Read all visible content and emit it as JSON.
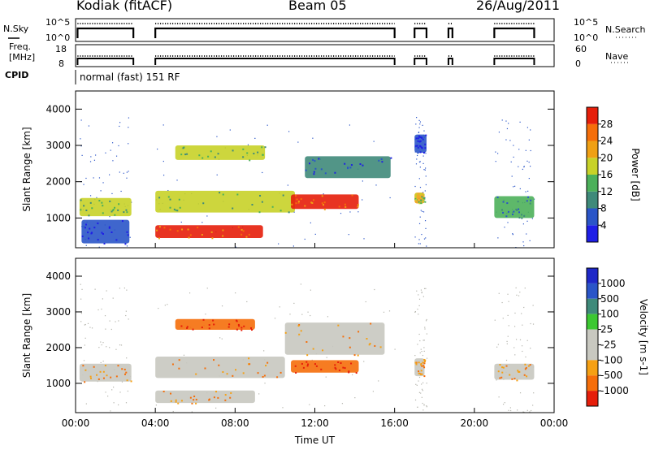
{
  "header": {
    "radar": "Kodiak (fitACF)",
    "beam": "Beam 05",
    "date": "26/Aug/2011"
  },
  "status": {
    "nsky_label": "N.Sky",
    "nsearch_label": "N.Search",
    "noise_ticks_left": [
      "10^5",
      "10^0"
    ],
    "noise_ticks_right": [
      "10^5",
      "10^0"
    ],
    "freq_label_1": "Freq.",
    "freq_label_2": "[MHz]",
    "freq_ticks": [
      "18",
      "8"
    ],
    "nave_label": "Nave",
    "nave_ticks": [
      "60",
      "0"
    ],
    "cpid_label": "CPID",
    "cpid_text": "normal (fast) 151 RF"
  },
  "colors": {
    "power_scale": [
      "#1e1ee6",
      "#2a55c8",
      "#3f8a7a",
      "#4cb05a",
      "#c8d228",
      "#f0a014",
      "#f56e0a",
      "#e61e0a"
    ],
    "velocity_scale": [
      "#e61e0a",
      "#f56e0a",
      "#f5a014",
      "#c8c8c0",
      "#c8c8c0",
      "#3cc832",
      "#3f8a7a",
      "#2a55c8",
      "#1e28c8"
    ],
    "ground_scatter": "#b4b4ac"
  },
  "chart_data": [
    {
      "type": "heatmap",
      "panel": "power",
      "ylabel": "Slant Range [km]",
      "ylim": [
        180,
        4500
      ],
      "y_ticks": [
        1000,
        2000,
        3000,
        4000
      ],
      "xlim": [
        0,
        24
      ],
      "x_tick_labels": [
        "00:00",
        "04:00",
        "08:00",
        "12:00",
        "16:00",
        "20:00",
        "00:00"
      ],
      "colorbar_label": "Power [dB]",
      "colorbar_ticks": [
        4,
        8,
        12,
        16,
        20,
        24,
        28
      ],
      "regions": [
        {
          "t0": 0.2,
          "t1": 2.8,
          "r0": 1050,
          "r1": 1550,
          "level": 4
        },
        {
          "t0": 0.3,
          "t1": 2.7,
          "r0": 300,
          "r1": 950,
          "level": 1
        },
        {
          "t0": 4.0,
          "t1": 9.4,
          "r0": 450,
          "r1": 800,
          "level": 7
        },
        {
          "t0": 4.0,
          "t1": 11.0,
          "r0": 1150,
          "r1": 1750,
          "level": 4
        },
        {
          "t0": 10.8,
          "t1": 14.2,
          "r0": 1250,
          "r1": 1650,
          "level": 7
        },
        {
          "t0": 5.0,
          "t1": 9.5,
          "r0": 2600,
          "r1": 3000,
          "level": 4
        },
        {
          "t0": 11.5,
          "t1": 15.8,
          "r0": 2100,
          "r1": 2700,
          "level": 2
        },
        {
          "t0": 17.0,
          "t1": 17.5,
          "r0": 1400,
          "r1": 1700,
          "level": 5
        },
        {
          "t0": 17.0,
          "t1": 17.6,
          "r0": 2800,
          "r1": 3300,
          "level": 1
        },
        {
          "t0": 21.0,
          "t1": 23.0,
          "r0": 1000,
          "r1": 1600,
          "level": 3
        }
      ]
    },
    {
      "type": "heatmap",
      "panel": "velocity",
      "ylabel": "Slant Range [km]",
      "xlabel": "Time UT",
      "ylim": [
        180,
        4500
      ],
      "y_ticks": [
        1000,
        2000,
        3000,
        4000
      ],
      "xlim": [
        0,
        24
      ],
      "x_tick_labels": [
        "00:00",
        "04:00",
        "08:00",
        "12:00",
        "16:00",
        "20:00",
        "00:00"
      ],
      "colorbar_label": "Velocity [m s-1]",
      "colorbar_ticks": [
        1000,
        500,
        100,
        25,
        -25,
        -100,
        -500,
        -1000
      ],
      "regions": [
        {
          "t0": 0.2,
          "t1": 2.8,
          "r0": 1050,
          "r1": 1550,
          "level": 3
        },
        {
          "t0": 4.0,
          "t1": 10.5,
          "r0": 1150,
          "r1": 1750,
          "level": 3
        },
        {
          "t0": 4.0,
          "t1": 9.0,
          "r0": 450,
          "r1": 800,
          "level": 3
        },
        {
          "t0": 5.0,
          "t1": 9.0,
          "r0": 2500,
          "r1": 2800,
          "level": 1
        },
        {
          "t0": 10.8,
          "t1": 14.2,
          "r0": 1300,
          "r1": 1650,
          "level": 1
        },
        {
          "t0": 10.5,
          "t1": 15.5,
          "r0": 1800,
          "r1": 2700,
          "level": 3
        },
        {
          "t0": 17.0,
          "t1": 17.5,
          "r0": 1200,
          "r1": 1700,
          "level": 3
        },
        {
          "t0": 21.0,
          "t1": 23.0,
          "r0": 1100,
          "r1": 1550,
          "level": 3
        }
      ]
    }
  ]
}
